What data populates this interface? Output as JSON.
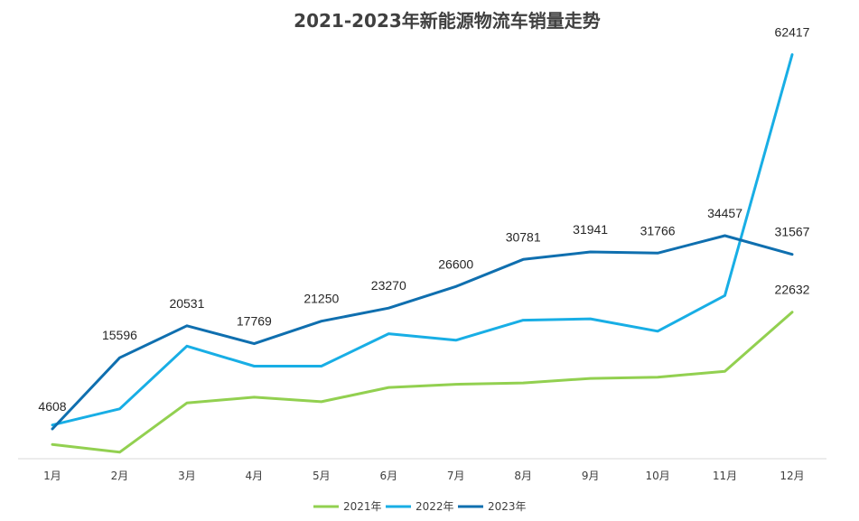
{
  "chart_data": {
    "type": "line",
    "title": "2021-2023年新能源物流车销量走势",
    "categories": [
      "1月",
      "2月",
      "3月",
      "4月",
      "5月",
      "6月",
      "7月",
      "8月",
      "9月",
      "10月",
      "11月",
      "12月"
    ],
    "series": [
      {
        "name": "2021年",
        "color": "#92d050",
        "values": [
          2200,
          1000,
          8600,
          9500,
          8800,
          11000,
          11500,
          11700,
          12400,
          12600,
          13500,
          22632
        ],
        "labels": []
      },
      {
        "name": "2022年",
        "color": "#18aee5",
        "values": [
          5200,
          7700,
          17400,
          14300,
          14300,
          19300,
          18300,
          21400,
          21600,
          19700,
          25200,
          62417
        ],
        "labels": [
          "",
          "",
          "",
          "",
          "",
          "",
          "",
          "",
          "",
          "",
          "",
          "62417"
        ]
      },
      {
        "name": "2023年",
        "color": "#0f6faf",
        "values": [
          4608,
          15596,
          20531,
          17769,
          21250,
          23270,
          26600,
          30781,
          31941,
          31766,
          34457,
          31567
        ],
        "labels": [
          "4608",
          "15596",
          "20531",
          "17769",
          "21250",
          "23270",
          "26600",
          "30781",
          "31941",
          "31766",
          "34457",
          "31567"
        ]
      }
    ],
    "extra_labels": [
      {
        "series": 0,
        "index": 11,
        "text": "22632"
      }
    ],
    "ylim": [
      0,
      65000
    ],
    "grid": false,
    "legend_position": "bottom"
  }
}
